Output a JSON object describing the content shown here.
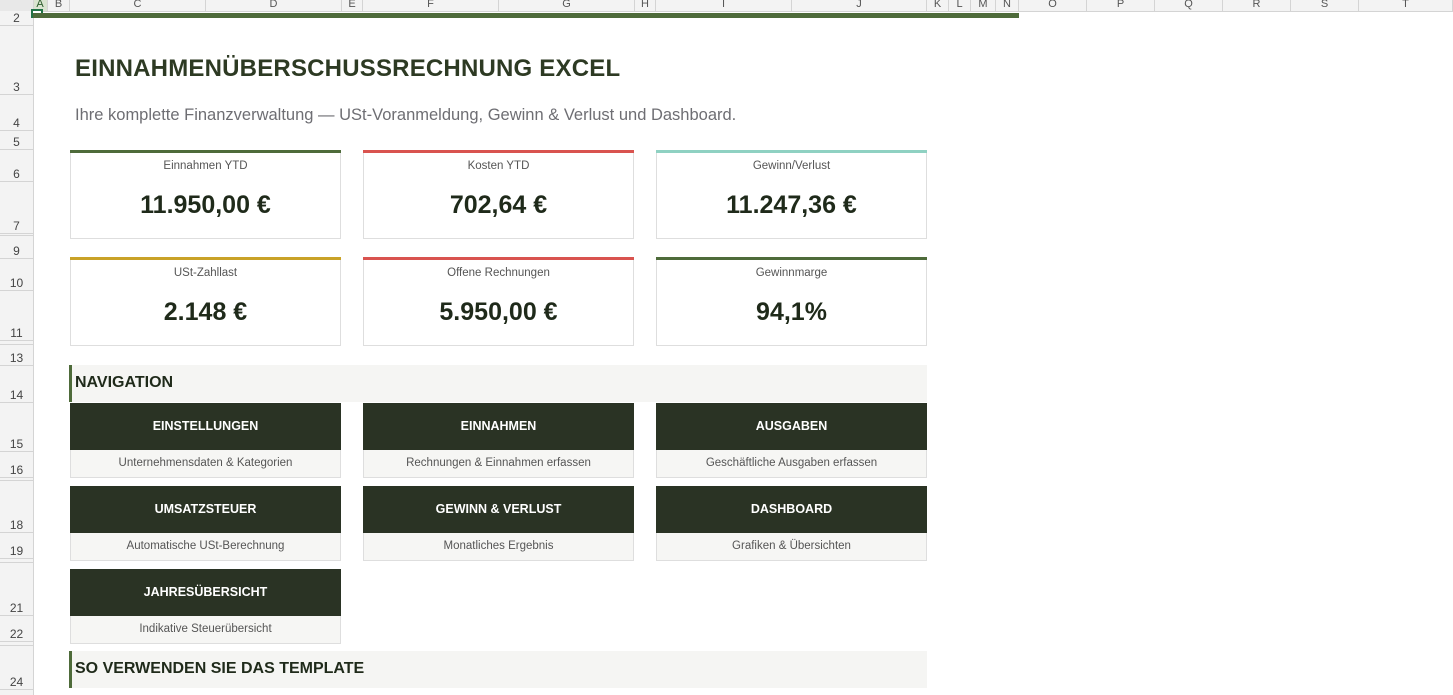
{
  "spreadsheet": {
    "columns": [
      "A",
      "B",
      "C",
      "D",
      "E",
      "F",
      "G",
      "H",
      "I",
      "J",
      "K",
      "L",
      "M",
      "N",
      "O",
      "P",
      "Q",
      "R",
      "S",
      "T"
    ],
    "rows": [
      "2",
      "3",
      "4",
      "5",
      "6",
      "7",
      "8",
      "9",
      "10",
      "11",
      "12",
      "13",
      "14",
      "15",
      "16",
      "17",
      "18",
      "19",
      "20",
      "21",
      "22",
      "23",
      "24"
    ],
    "selected_column": "A",
    "accent_color": "#4e6b3a"
  },
  "header": {
    "title": "EINNAHMENÜBERSCHUSSRECHNUNG EXCEL",
    "subtitle": "Ihre komplette Finanzverwaltung — USt-Voranmeldung, Gewinn & Verlust und Dashboard."
  },
  "kpis": [
    {
      "label": "Einnahmen YTD",
      "value": "11.950,00 €",
      "color": "#4e6b3a"
    },
    {
      "label": "Kosten YTD",
      "value": "702,64 €",
      "color": "#d9534f"
    },
    {
      "label": "Gewinn/Verlust",
      "value": "11.247,36 €",
      "color": "#8fd1c2"
    },
    {
      "label": "USt-Zahllast",
      "value": "2.148 €",
      "color": "#c9a227"
    },
    {
      "label": "Offene Rechnungen",
      "value": "5.950,00 €",
      "color": "#d9534f"
    },
    {
      "label": "Gewinnmarge",
      "value": "94,1%",
      "color": "#4e6b3a"
    }
  ],
  "sections": {
    "navigation": "NAVIGATION",
    "howto": "SO VERWENDEN SIE DAS TEMPLATE"
  },
  "nav": [
    {
      "label": "EINSTELLUNGEN",
      "desc": "Unternehmensdaten & Kategorien"
    },
    {
      "label": "EINNAHMEN",
      "desc": "Rechnungen & Einnahmen erfassen"
    },
    {
      "label": "AUSGABEN",
      "desc": "Geschäftliche Ausgaben erfassen"
    },
    {
      "label": "UMSATZSTEUER",
      "desc": "Automatische USt-Berechnung"
    },
    {
      "label": "GEWINN & VERLUST",
      "desc": "Monatliches Ergebnis"
    },
    {
      "label": "DASHBOARD",
      "desc": "Grafiken & Übersichten"
    },
    {
      "label": "JAHRESÜBERSICHT",
      "desc": "Indikative Steuerübersicht"
    }
  ]
}
